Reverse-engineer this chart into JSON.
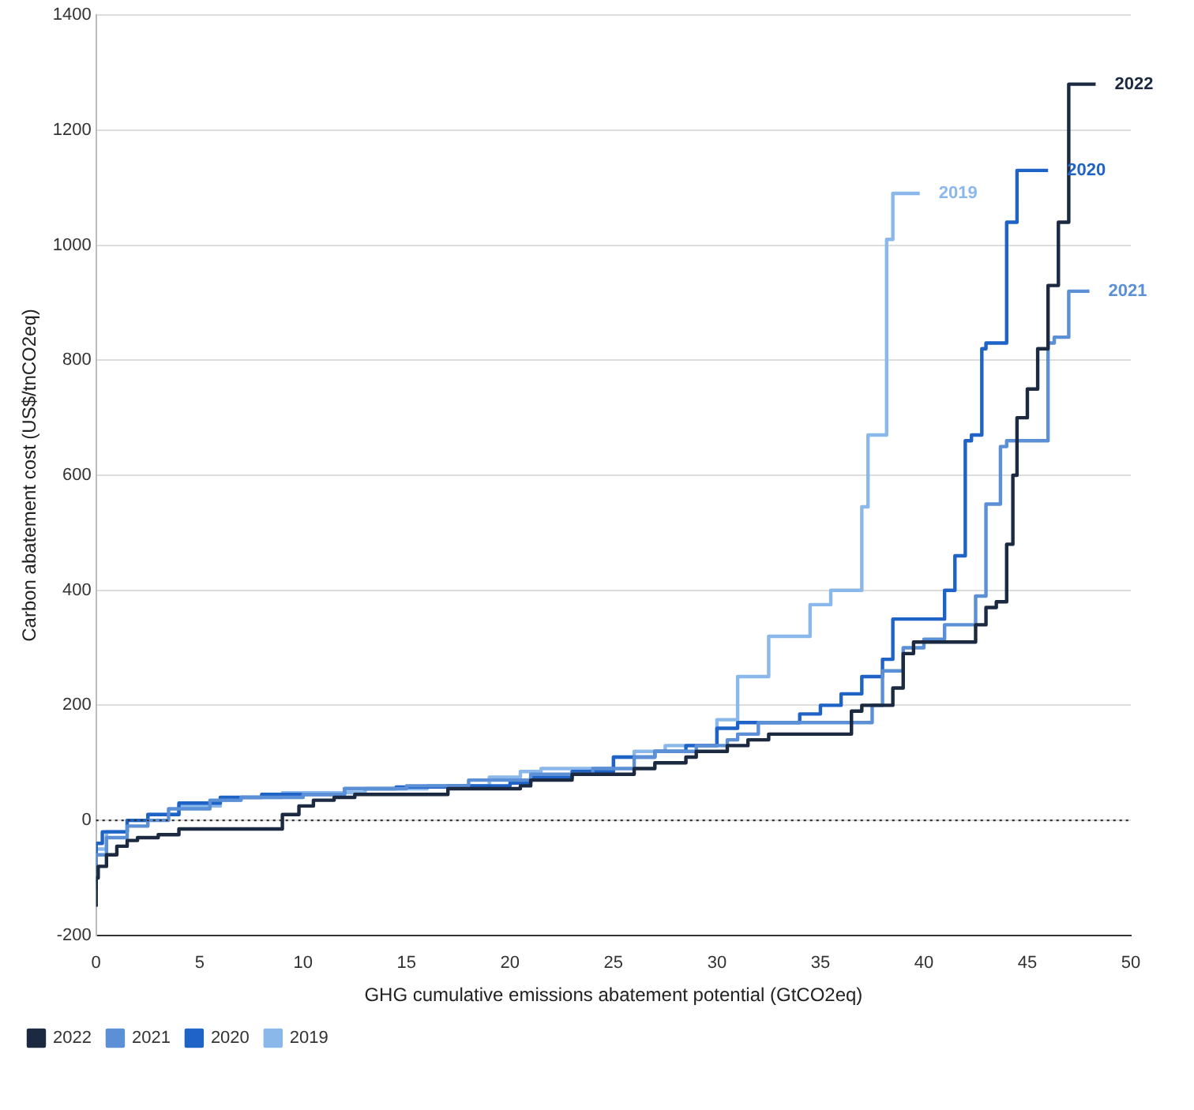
{
  "chart_data": {
    "type": "step",
    "xlabel": "GHG cumulative emissions abatement potential (GtCO2eq)",
    "ylabel": "Carbon abatement cost (US$/tnCO2eq)",
    "xlim": [
      0,
      50
    ],
    "xticks": [
      0,
      5,
      10,
      15,
      20,
      25,
      30,
      35,
      40,
      45,
      50
    ],
    "ylim": [
      -200,
      1400
    ],
    "yticks": [
      -200,
      0,
      200,
      400,
      600,
      800,
      1000,
      1200,
      1400
    ],
    "grid": "y",
    "legend": "bottom left",
    "ref_lines": [
      {
        "axis": "y",
        "value": 0,
        "line_style": "dotted",
        "color": "#333333"
      }
    ],
    "series": [
      {
        "name": "2022",
        "color": "#1b2a41",
        "x": [
          0,
          0.1,
          0.5,
          1,
          1.5,
          2,
          3,
          4,
          5,
          9,
          9.8,
          10.5,
          11.5,
          12.5,
          17,
          20.5,
          21,
          23,
          26,
          27,
          28.5,
          29,
          30.5,
          31.5,
          32.5,
          36.5,
          37,
          38.5,
          39,
          39.5,
          42.5,
          43,
          43.5,
          44,
          44.3,
          44.5,
          45,
          45.5,
          46,
          46.5,
          47,
          47.6,
          48.3
        ],
        "values": [
          -150,
          -100,
          -80,
          -60,
          -45,
          -35,
          -30,
          -25,
          -15,
          -15,
          10,
          25,
          35,
          40,
          45,
          55,
          60,
          70,
          80,
          90,
          100,
          110,
          120,
          130,
          140,
          150,
          190,
          200,
          230,
          290,
          310,
          340,
          370,
          380,
          480,
          600,
          700,
          750,
          820,
          930,
          1040,
          1280,
          1280
        ]
      },
      {
        "name": "2021",
        "color": "#5b8fd6",
        "x": [
          0,
          0.5,
          1.5,
          2.5,
          3.5,
          5.5,
          7,
          10,
          12,
          15,
          18,
          21,
          24,
          26,
          27,
          29,
          30.5,
          31,
          32,
          37.5,
          38,
          39,
          40,
          41,
          42.5,
          43,
          43.7,
          44,
          46,
          46.3,
          47,
          47.6,
          48
        ],
        "values": [
          -110,
          -60,
          -30,
          -10,
          0,
          20,
          35,
          40,
          45,
          55,
          60,
          70,
          80,
          90,
          110,
          120,
          130,
          140,
          150,
          170,
          200,
          260,
          300,
          315,
          340,
          390,
          550,
          650,
          660,
          830,
          840,
          920,
          920
        ]
      },
      {
        "name": "2020",
        "color": "#1f63c6",
        "x": [
          0,
          0.3,
          1.5,
          2.5,
          4,
          6,
          8,
          12,
          14.5,
          17,
          20,
          21,
          23,
          25,
          27,
          28.5,
          30,
          31,
          34,
          35,
          36,
          37,
          38,
          38.5,
          39,
          41,
          41.5,
          42,
          42.3,
          42.8,
          43,
          44,
          44.5,
          45.5,
          46
        ],
        "values": [
          -120,
          -40,
          -20,
          0,
          10,
          30,
          40,
          45,
          55,
          58,
          60,
          65,
          75,
          85,
          110,
          120,
          130,
          160,
          170,
          185,
          200,
          220,
          250,
          280,
          350,
          350,
          400,
          460,
          660,
          670,
          820,
          830,
          1040,
          1130,
          1130
        ]
      },
      {
        "name": "2019",
        "color": "#8ab8ea",
        "x": [
          0,
          0.5,
          1.5,
          2.5,
          4,
          6,
          7,
          9,
          13,
          16,
          19,
          20.5,
          21.5,
          25,
          26,
          27.5,
          30,
          31,
          32.5,
          34.5,
          35.5,
          37,
          37.3,
          38.2,
          38.5,
          39.3,
          39.8
        ],
        "values": [
          -110,
          -50,
          -20,
          0,
          10,
          25,
          35,
          40,
          48,
          55,
          60,
          75,
          85,
          90,
          110,
          120,
          130,
          175,
          250,
          320,
          375,
          400,
          545,
          670,
          1010,
          1090,
          1090
        ]
      }
    ]
  }
}
